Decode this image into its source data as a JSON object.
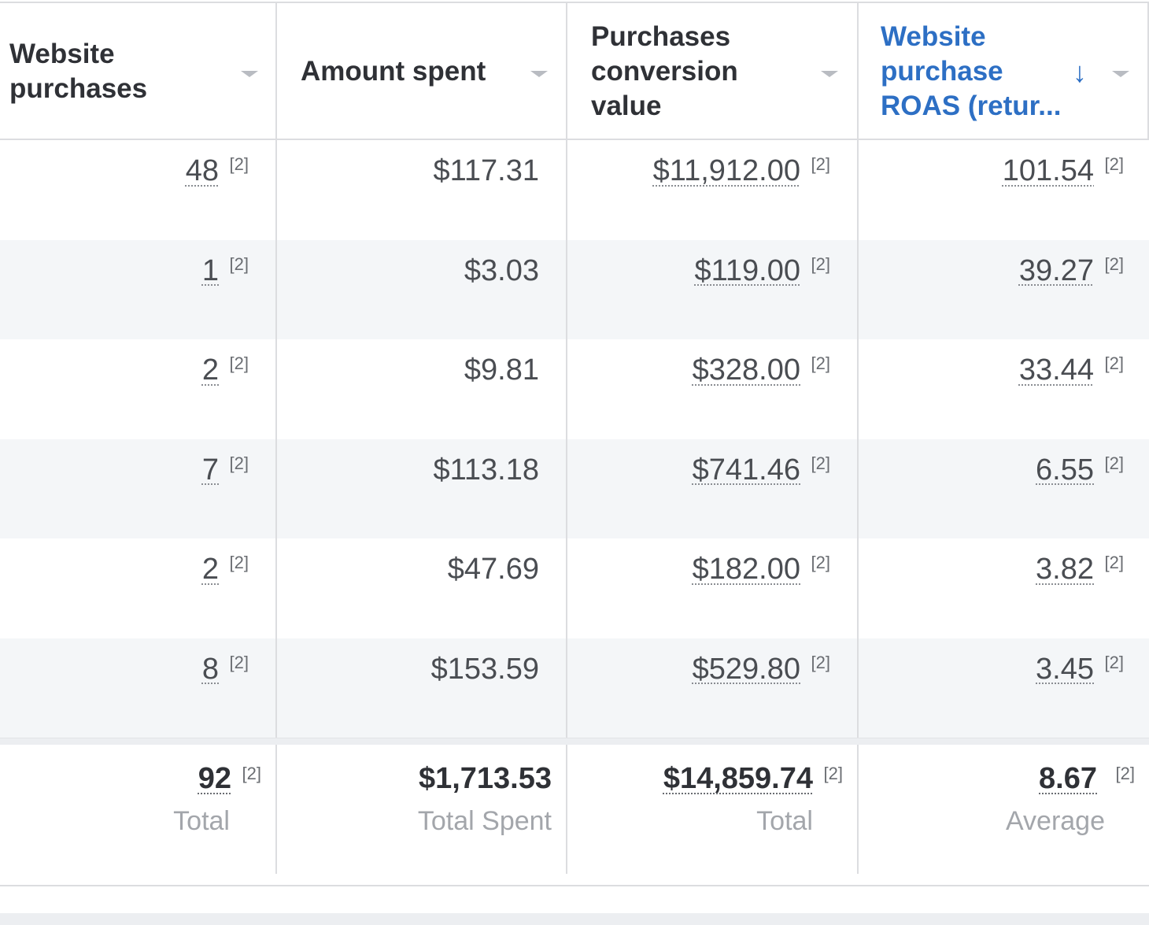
{
  "columns": [
    {
      "label": "Website\npurchases",
      "sorted": false
    },
    {
      "label": "Amount spent",
      "sorted": false
    },
    {
      "label": "Purchases\nconversion\nvalue",
      "sorted": false
    },
    {
      "label": "Website\npurchase\nROAS (retur...",
      "sorted": true,
      "sort_symbol": "↓"
    }
  ],
  "note_marker": "[2]",
  "rows": [
    {
      "purchases": "48",
      "spent": "$117.31",
      "conversion": "$11,912.00",
      "roas": "101.54"
    },
    {
      "purchases": "1",
      "spent": "$3.03",
      "conversion": "$119.00",
      "roas": "39.27"
    },
    {
      "purchases": "2",
      "spent": "$9.81",
      "conversion": "$328.00",
      "roas": "33.44"
    },
    {
      "purchases": "7",
      "spent": "$113.18",
      "conversion": "$741.46",
      "roas": "6.55"
    },
    {
      "purchases": "2",
      "spent": "$47.69",
      "conversion": "$182.00",
      "roas": "3.82"
    },
    {
      "purchases": "8",
      "spent": "$153.59",
      "conversion": "$529.80",
      "roas": "3.45"
    }
  ],
  "totals": {
    "purchases": {
      "value": "92",
      "label": "Total"
    },
    "spent": {
      "value": "$1,713.53",
      "label": "Total Spent"
    },
    "conversion": {
      "value": "$14,859.74",
      "label": "Total"
    },
    "roas": {
      "value": "8.67",
      "label": "Average"
    }
  },
  "colors": {
    "sorted_header": "#2d6fc4",
    "row_shade": "#f4f6f8",
    "border": "#dcdde0"
  }
}
